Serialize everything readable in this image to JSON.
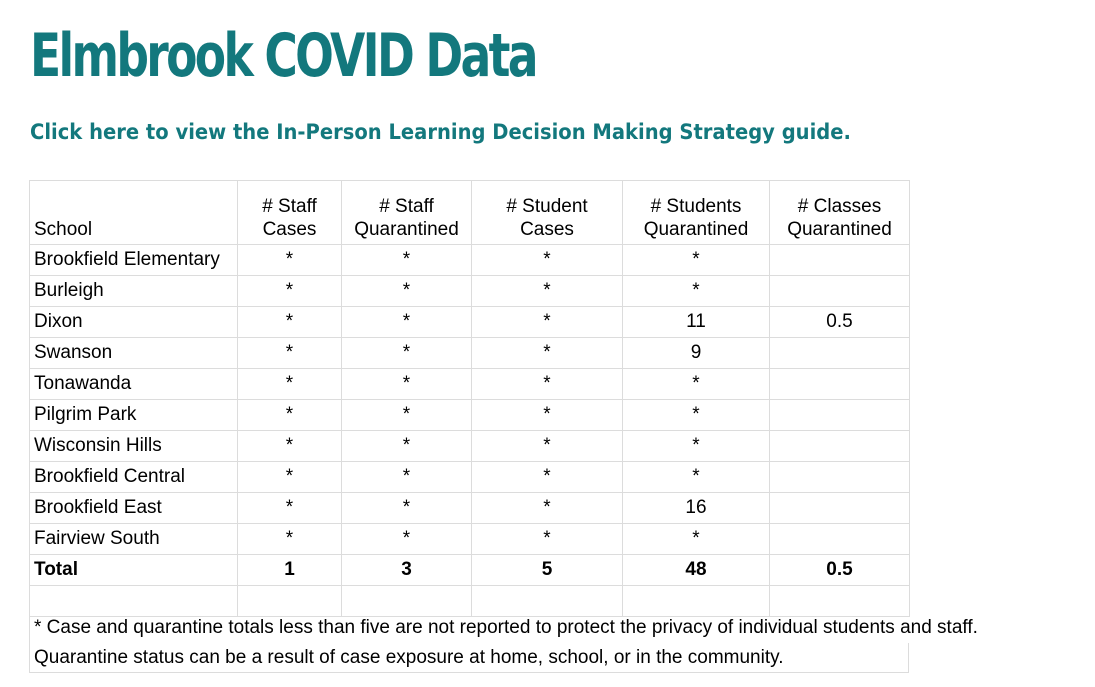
{
  "page": {
    "title": "Elmbrook COVID Data",
    "guide_link": "Click here to view the In-Person Learning Decision Making Strategy guide."
  },
  "colors": {
    "accent": "#13787d",
    "grid": "#dcdcdc"
  },
  "table": {
    "headers": [
      [
        "School"
      ],
      [
        "# Staff",
        "Cases"
      ],
      [
        "# Staff",
        "Quarantined"
      ],
      [
        "# Student",
        "Cases"
      ],
      [
        "# Students",
        "Quarantined"
      ],
      [
        "# Classes",
        "Quarantined"
      ]
    ],
    "rows": [
      {
        "school": "Brookfield Elementary",
        "staff_cases": "*",
        "staff_quarantined": "*",
        "student_cases": "*",
        "students_quarantined": "*",
        "classes_quarantined": ""
      },
      {
        "school": "Burleigh",
        "staff_cases": "*",
        "staff_quarantined": "*",
        "student_cases": "*",
        "students_quarantined": "*",
        "classes_quarantined": ""
      },
      {
        "school": "Dixon",
        "staff_cases": "*",
        "staff_quarantined": "*",
        "student_cases": "*",
        "students_quarantined": "11",
        "classes_quarantined": "0.5"
      },
      {
        "school": "Swanson",
        "staff_cases": "*",
        "staff_quarantined": "*",
        "student_cases": "*",
        "students_quarantined": "9",
        "classes_quarantined": ""
      },
      {
        "school": "Tonawanda",
        "staff_cases": "*",
        "staff_quarantined": "*",
        "student_cases": "*",
        "students_quarantined": "*",
        "classes_quarantined": ""
      },
      {
        "school": "Pilgrim Park",
        "staff_cases": "*",
        "staff_quarantined": "*",
        "student_cases": "*",
        "students_quarantined": "*",
        "classes_quarantined": ""
      },
      {
        "school": "Wisconsin Hills",
        "staff_cases": "*",
        "staff_quarantined": "*",
        "student_cases": "*",
        "students_quarantined": "*",
        "classes_quarantined": ""
      },
      {
        "school": "Brookfield Central",
        "staff_cases": "*",
        "staff_quarantined": "*",
        "student_cases": "*",
        "students_quarantined": "*",
        "classes_quarantined": ""
      },
      {
        "school": "Brookfield East",
        "staff_cases": "*",
        "staff_quarantined": "*",
        "student_cases": "*",
        "students_quarantined": "16",
        "classes_quarantined": ""
      },
      {
        "school": "Fairview South",
        "staff_cases": "*",
        "staff_quarantined": "*",
        "student_cases": "*",
        "students_quarantined": "*",
        "classes_quarantined": ""
      }
    ],
    "total": {
      "school": "Total",
      "staff_cases": "1",
      "staff_quarantined": "3",
      "student_cases": "5",
      "students_quarantined": "48",
      "classes_quarantined": "0.5"
    }
  },
  "notes": [
    "* Case and quarantine totals less than five are not reported to protect the privacy of individual students and staff.",
    "Quarantine status can be a result of case exposure at home, school, or in the community."
  ]
}
